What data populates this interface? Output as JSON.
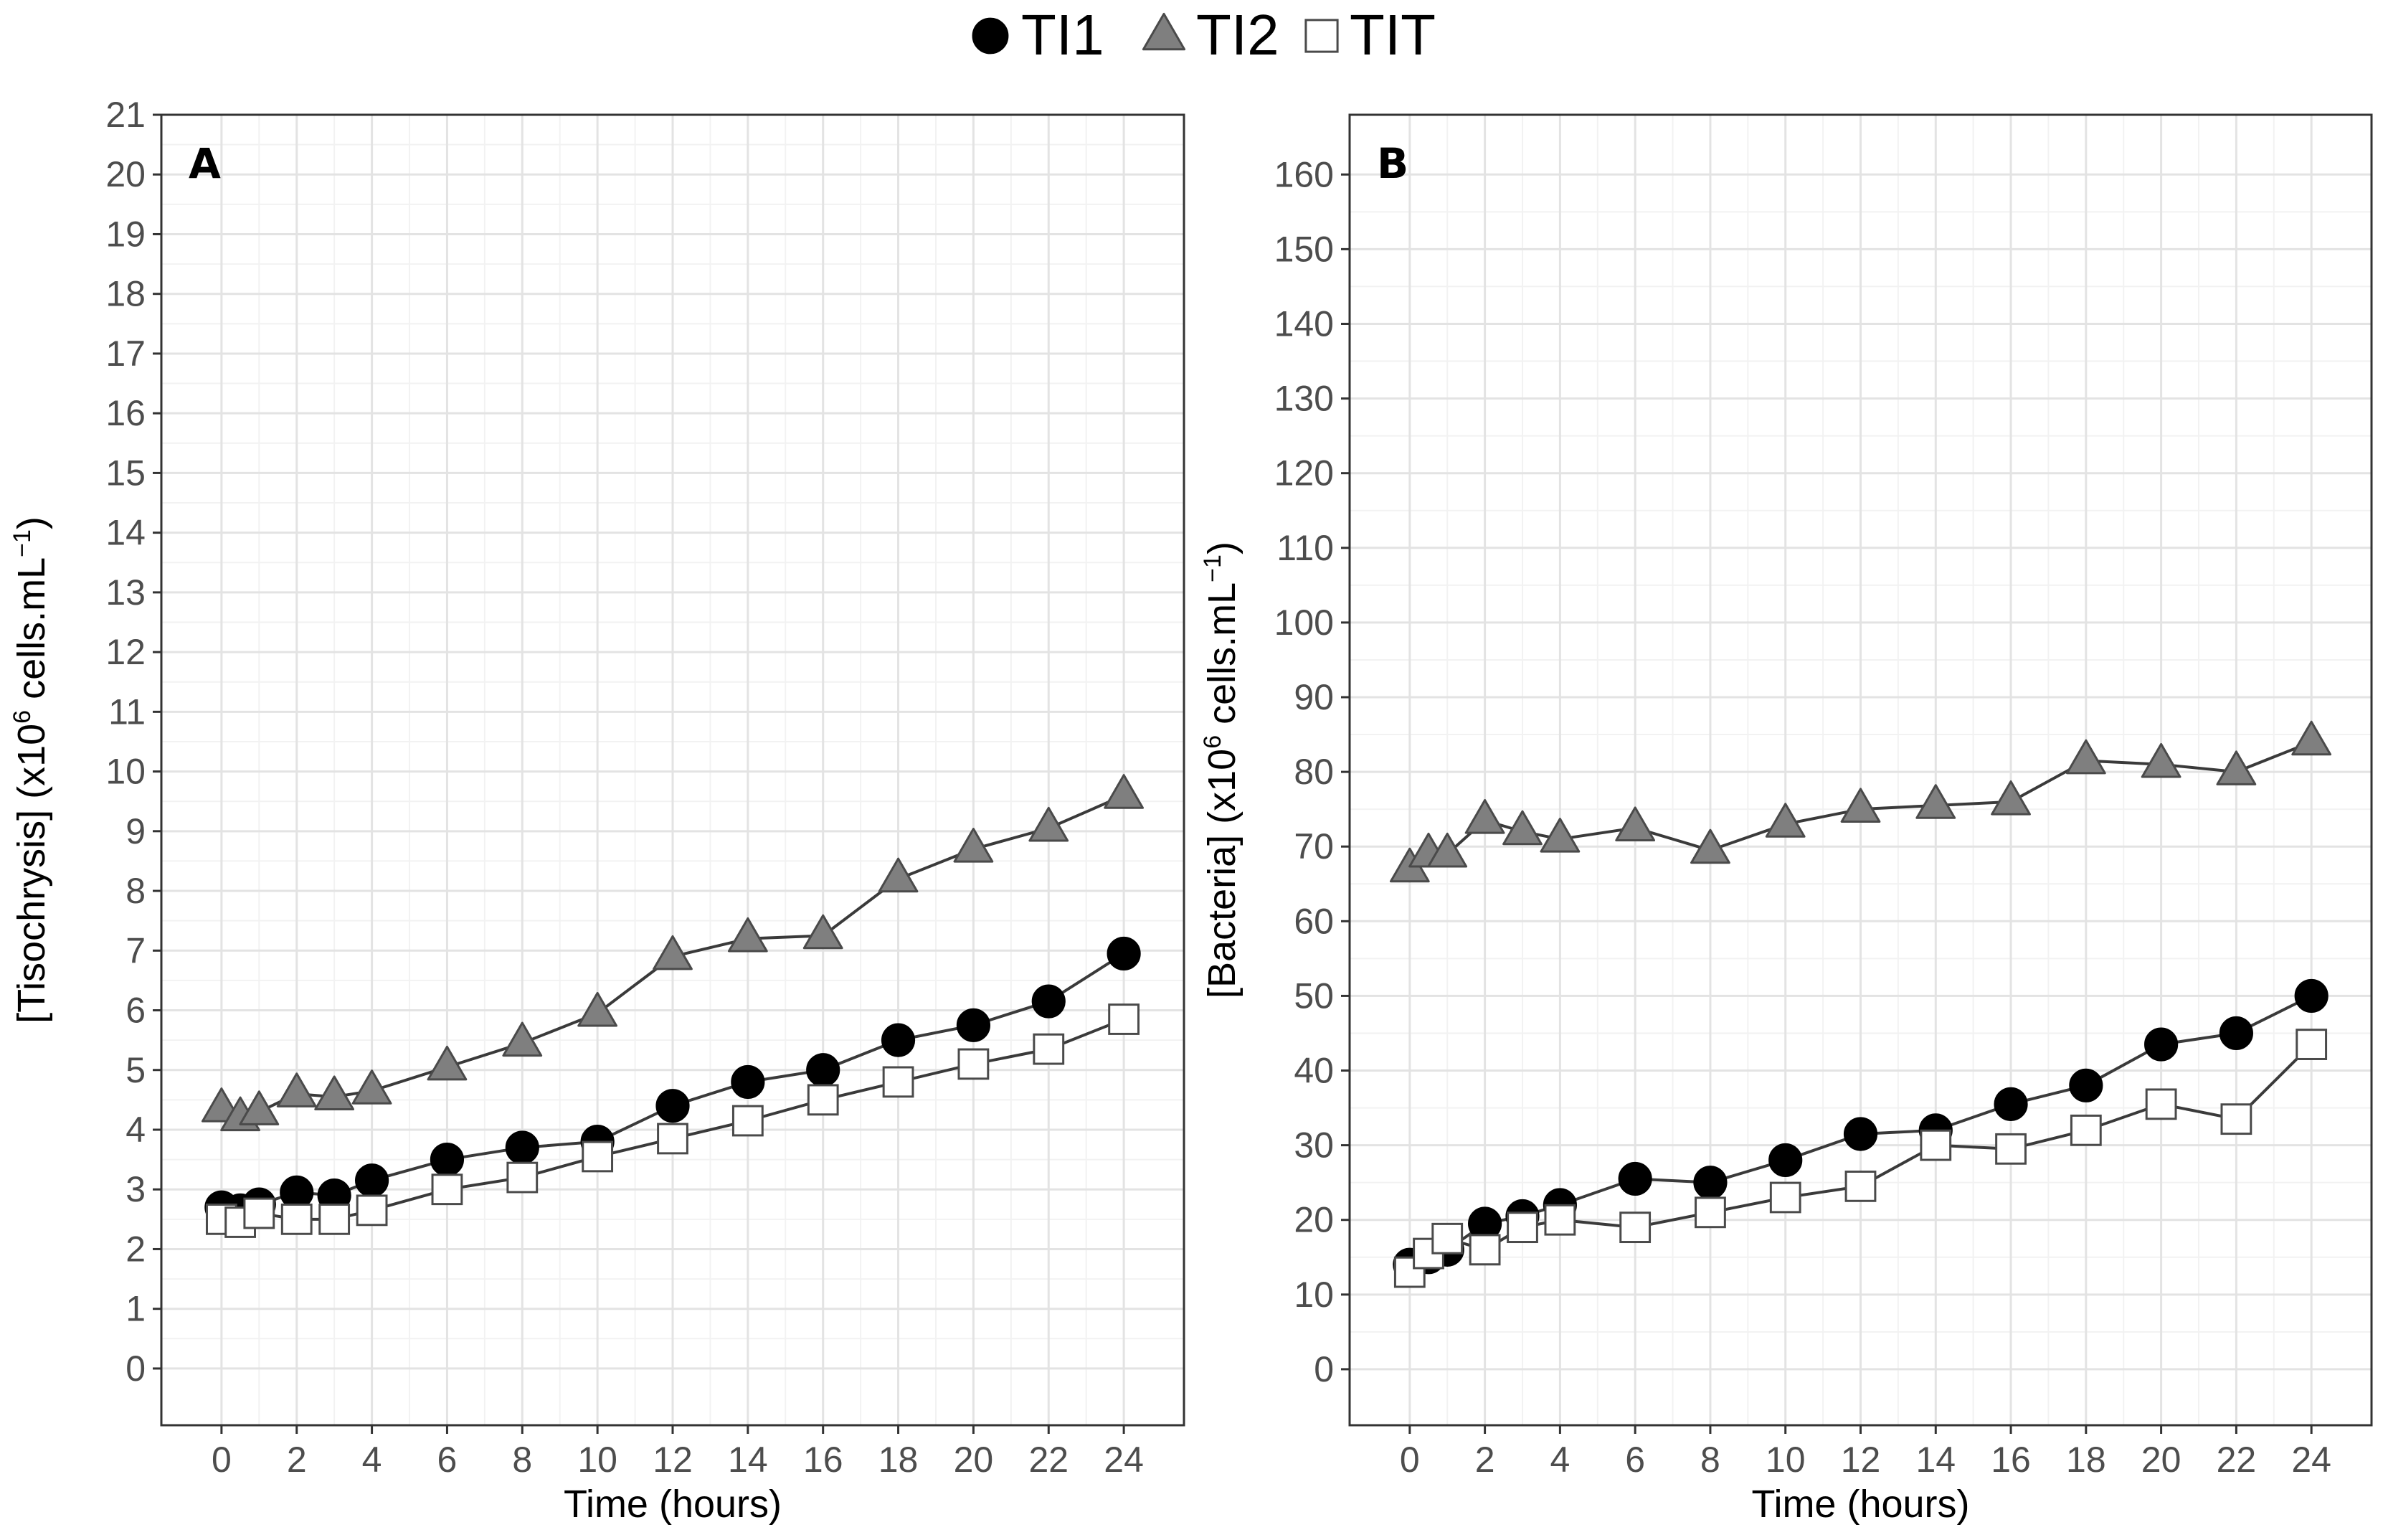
{
  "legend": {
    "entries": [
      {
        "key": "TI1",
        "label": "TI1",
        "marker": "filled-circle",
        "fill": "#000000",
        "stroke": "#000000"
      },
      {
        "key": "TI2",
        "label": "TI2",
        "marker": "filled-triangle",
        "fill": "#7f7f7f",
        "stroke": "#4a4a4a"
      },
      {
        "key": "TIT",
        "label": "TIT",
        "marker": "open-square",
        "fill": "#ffffff",
        "stroke": "#4a4a4a"
      }
    ]
  },
  "chart_data": [
    {
      "type": "line",
      "panel_label": "A",
      "xlabel": "Time (hours)",
      "ylabel_prefix": "[Tisochrysis] (x10",
      "ylabel_sup": "6",
      "ylabel_mid": " cells.mL",
      "ylabel_sup2": "−1",
      "ylabel_suffix": ")",
      "xlim": [
        -1.6,
        25.6
      ],
      "ylim": [
        -0.95,
        21
      ],
      "xticks": [
        0,
        2,
        4,
        6,
        8,
        10,
        12,
        14,
        16,
        18,
        20,
        22,
        24
      ],
      "yticks": [
        0,
        1,
        2,
        3,
        4,
        5,
        6,
        7,
        8,
        9,
        10,
        11,
        12,
        13,
        14,
        15,
        16,
        17,
        18,
        19,
        20,
        21
      ],
      "x": [
        0,
        0.5,
        1,
        2,
        3,
        4,
        6,
        8,
        10,
        12,
        14,
        16,
        18,
        20,
        22,
        24
      ],
      "series": [
        {
          "name": "TI2",
          "values": [
            4.35,
            4.2,
            4.3,
            4.6,
            4.55,
            4.65,
            5.05,
            5.45,
            5.95,
            6.9,
            7.2,
            7.25,
            8.2,
            8.7,
            9.05,
            9.6
          ]
        },
        {
          "name": "TI1",
          "values": [
            2.7,
            2.65,
            2.75,
            2.95,
            2.9,
            3.15,
            3.5,
            3.7,
            3.8,
            4.4,
            4.8,
            5.0,
            5.5,
            5.75,
            6.15,
            6.95
          ]
        },
        {
          "name": "TIT",
          "values": [
            2.5,
            2.45,
            2.6,
            2.5,
            2.5,
            2.65,
            3.0,
            3.2,
            3.55,
            3.85,
            4.15,
            4.5,
            4.8,
            5.1,
            5.35,
            5.85
          ]
        }
      ]
    },
    {
      "type": "line",
      "panel_label": "B",
      "xlabel": "Time (hours)",
      "ylabel_prefix": "[Bacteria] (x10",
      "ylabel_sup": "6",
      "ylabel_mid": " cells.mL",
      "ylabel_sup2": "−1",
      "ylabel_suffix": ")",
      "xlim": [
        -1.6,
        25.6
      ],
      "ylim": [
        -7.5,
        168
      ],
      "xticks": [
        0,
        2,
        4,
        6,
        8,
        10,
        12,
        14,
        16,
        18,
        20,
        22,
        24
      ],
      "yticks": [
        0,
        10,
        20,
        30,
        40,
        50,
        60,
        70,
        80,
        90,
        100,
        110,
        120,
        130,
        140,
        150,
        160
      ],
      "x": [
        0,
        0.5,
        1,
        2,
        3,
        4,
        6,
        8,
        10,
        12,
        14,
        16,
        18,
        20,
        22,
        24
      ],
      "series": [
        {
          "name": "TI2",
          "values": [
            67,
            69,
            69,
            73.5,
            72,
            71,
            72.5,
            69.5,
            73,
            75,
            75.5,
            76,
            81.5,
            81,
            80,
            84
          ]
        },
        {
          "name": "TI1",
          "values": [
            14,
            15,
            16,
            19.5,
            20.5,
            22,
            25.5,
            25,
            28,
            31.5,
            32,
            35.5,
            38,
            43.5,
            45,
            50
          ]
        },
        {
          "name": "TIT",
          "values": [
            13,
            15.5,
            17.5,
            16,
            19,
            20,
            19,
            21,
            23,
            24.5,
            30,
            29.5,
            32,
            35.5,
            33.5,
            43.5
          ]
        }
      ]
    }
  ]
}
